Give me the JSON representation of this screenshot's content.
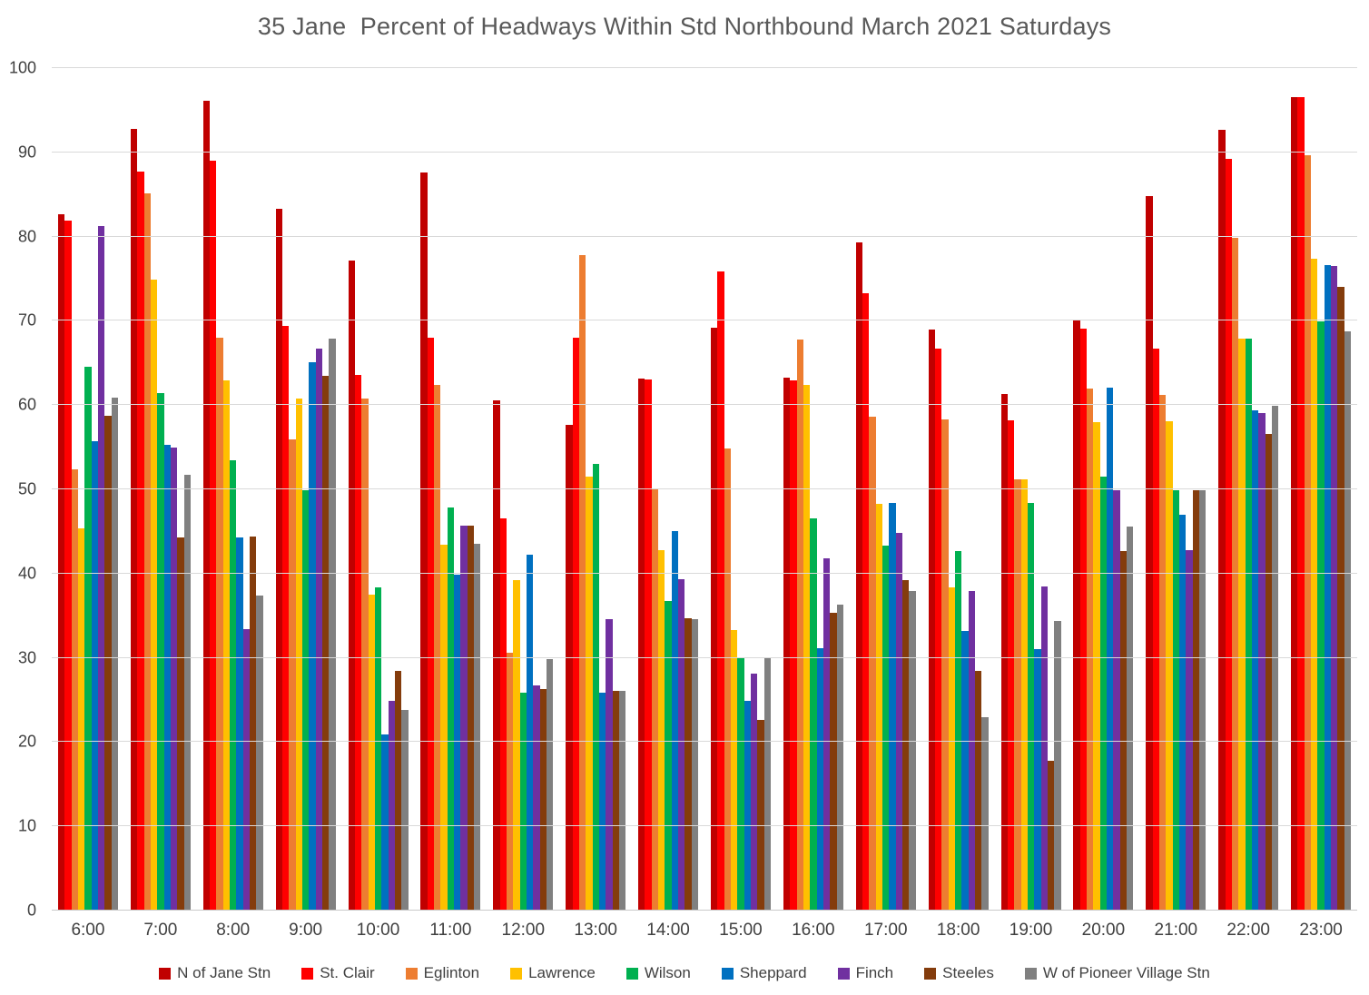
{
  "chart_data": {
    "type": "bar",
    "title": "35 Jane  Percent of Headways Within Std Northbound March 2021 Saturdays",
    "xlabel": "",
    "ylabel": "",
    "ylim": [
      0,
      100
    ],
    "yticks": [
      0,
      10,
      20,
      30,
      40,
      50,
      60,
      70,
      80,
      90,
      100
    ],
    "grid": "horizontal",
    "legend_position": "bottom",
    "categories": [
      "6:00",
      "7:00",
      "8:00",
      "9:00",
      "10:00",
      "11:00",
      "12:00",
      "13:00",
      "14:00",
      "15:00",
      "16:00",
      "17:00",
      "18:00",
      "19:00",
      "20:00",
      "21:00",
      "22:00",
      "23:00"
    ],
    "series": [
      {
        "name": "N of Jane Stn",
        "color": "#C00000",
        "values": [
          82.6,
          92.8,
          96.1,
          83.3,
          77.2,
          87.6,
          60.6,
          57.6,
          63.2,
          69.2,
          63.3,
          79.3,
          69.0,
          61.3,
          70.0,
          84.8,
          92.7,
          96.6
        ]
      },
      {
        "name": "St. Clair",
        "color": "#FF0000",
        "values": [
          81.9,
          87.7,
          89.0,
          69.4,
          63.6,
          68.0,
          46.6,
          68.0,
          63.0,
          75.9,
          62.9,
          73.3,
          66.7,
          58.2,
          69.1,
          66.7,
          89.2,
          96.5
        ]
      },
      {
        "name": "Eglinton",
        "color": "#ED7D31",
        "values": [
          52.4,
          85.1,
          68.0,
          55.9,
          60.8,
          62.4,
          30.6,
          77.8,
          50.0,
          54.8,
          67.8,
          58.6,
          58.3,
          51.2,
          62.0,
          61.2,
          79.9,
          89.7
        ]
      },
      {
        "name": "Lawrence",
        "color": "#FFC000",
        "values": [
          45.4,
          74.9,
          62.9,
          60.8,
          37.5,
          43.4,
          39.2,
          51.5,
          42.8,
          33.3,
          62.4,
          48.3,
          38.4,
          51.2,
          58.0,
          58.1,
          67.9,
          77.4
        ]
      },
      {
        "name": "Wilson",
        "color": "#00B050",
        "values": [
          64.6,
          61.4,
          53.4,
          49.9,
          38.4,
          47.8,
          25.9,
          53.0,
          36.8,
          30.1,
          46.6,
          43.3,
          42.7,
          48.4,
          51.5,
          49.9,
          67.9,
          69.9
        ]
      },
      {
        "name": "Sheppard",
        "color": "#0070C0",
        "values": [
          55.7,
          55.3,
          44.3,
          65.1,
          20.9,
          39.9,
          42.2,
          25.9,
          45.0,
          24.9,
          31.1,
          48.4,
          33.2,
          31.0,
          62.1,
          47.0,
          59.4,
          76.6
        ]
      },
      {
        "name": "Finch",
        "color": "#7030A0",
        "values": [
          81.3,
          55.0,
          33.4,
          66.7,
          24.9,
          45.7,
          26.7,
          34.6,
          39.3,
          28.1,
          41.8,
          44.8,
          37.9,
          38.5,
          49.9,
          42.8,
          59.0,
          76.5
        ]
      },
      {
        "name": "Steeles",
        "color": "#843C0C",
        "values": [
          58.7,
          44.3,
          44.4,
          63.5,
          28.5,
          45.7,
          26.3,
          26.1,
          34.7,
          22.6,
          35.3,
          39.2,
          28.4,
          17.8,
          42.7,
          49.9,
          56.6,
          74.0
        ]
      },
      {
        "name": "W of Pioneer Village Stn",
        "color": "#808080",
        "values": [
          60.9,
          51.7,
          37.4,
          67.9,
          23.8,
          43.5,
          29.9,
          26.1,
          34.6,
          30.0,
          36.3,
          37.9,
          23.0,
          34.4,
          45.6,
          49.9,
          59.9,
          68.8
        ]
      }
    ]
  },
  "colors": {
    "background": "#FFFFFF",
    "gridline": "#D9D9D9",
    "baseline": "#C9C9C9",
    "title_text": "#595959",
    "tick_text": "#404040",
    "legend_text": "#404040"
  }
}
